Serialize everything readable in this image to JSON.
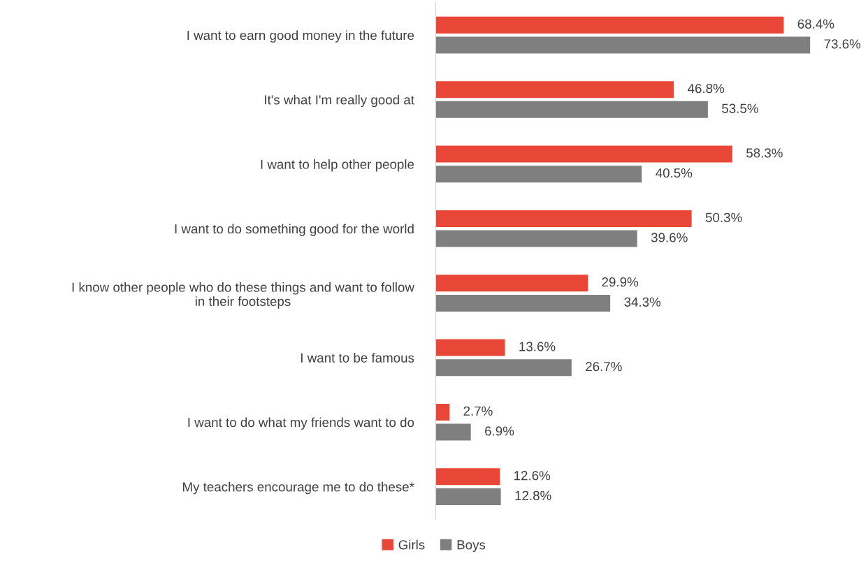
{
  "chart_data": {
    "type": "bar",
    "orientation": "horizontal",
    "categories": [
      "I want to earn good money in the future",
      "It's what I'm really good at",
      "I want to help other people",
      "I want to do something good for the world",
      "I know other people who do these things and want to follow\nin their footsteps",
      "I want to be famous",
      "I want to do what my friends want to do",
      "My teachers encourage me to do these*"
    ],
    "series": [
      {
        "name": "Girls",
        "color": "#e84636",
        "values": [
          68.4,
          46.8,
          58.3,
          50.3,
          29.9,
          13.6,
          2.7,
          12.6
        ],
        "value_labels": [
          "68.4%",
          "46.8%",
          "58.3%",
          "50.3%",
          "29.9%",
          "13.6%",
          "2.7%",
          "12.6%"
        ]
      },
      {
        "name": "Boys",
        "color": "#7f7f7f",
        "values": [
          73.6,
          53.5,
          40.5,
          39.6,
          34.3,
          26.7,
          6.9,
          12.8
        ],
        "value_labels": [
          "73.6%",
          "53.5%",
          "40.5%",
          "39.6%",
          "34.3%",
          "26.7%",
          "6.9%",
          "12.8%"
        ]
      }
    ],
    "tick_labels": "y",
    "grid": false,
    "legend": "bottom"
  }
}
